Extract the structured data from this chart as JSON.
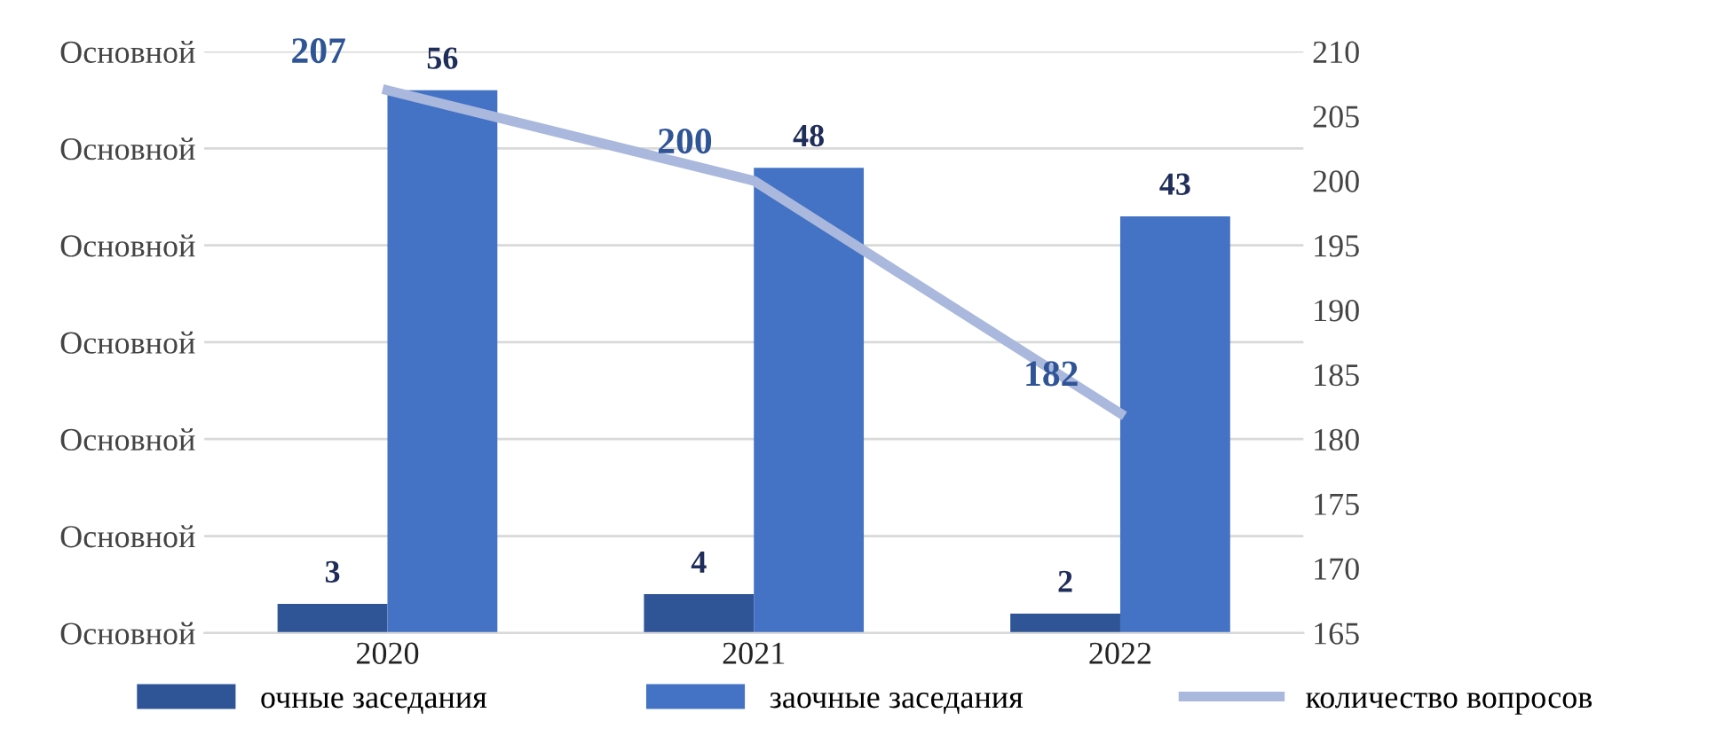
{
  "chart_data": {
    "type": "bar",
    "categories": [
      "2020",
      "2021",
      "2022"
    ],
    "series": [
      {
        "name": "очные заседания",
        "color": "#2f5597",
        "values": [
          3,
          4,
          2
        ]
      },
      {
        "name": "заочные заседания",
        "color": "#4472c4",
        "values": [
          56,
          48,
          43
        ]
      },
      {
        "name": "количество вопросов",
        "type": "line",
        "axis": "y2",
        "color": "#a9b8dc",
        "values": [
          207,
          200,
          182
        ]
      }
    ],
    "ylim": [
      0,
      60
    ],
    "y_categories": [
      "Основной",
      "Основной",
      "Основной",
      "Основной",
      "Основной",
      "Основной",
      "Основной"
    ],
    "y2lim": [
      165,
      210
    ],
    "y2ticks": [
      165,
      170,
      175,
      180,
      185,
      190,
      195,
      200,
      205,
      210
    ],
    "grid": "y",
    "legend": "bottom",
    "data_labels": true,
    "marker": "none"
  }
}
